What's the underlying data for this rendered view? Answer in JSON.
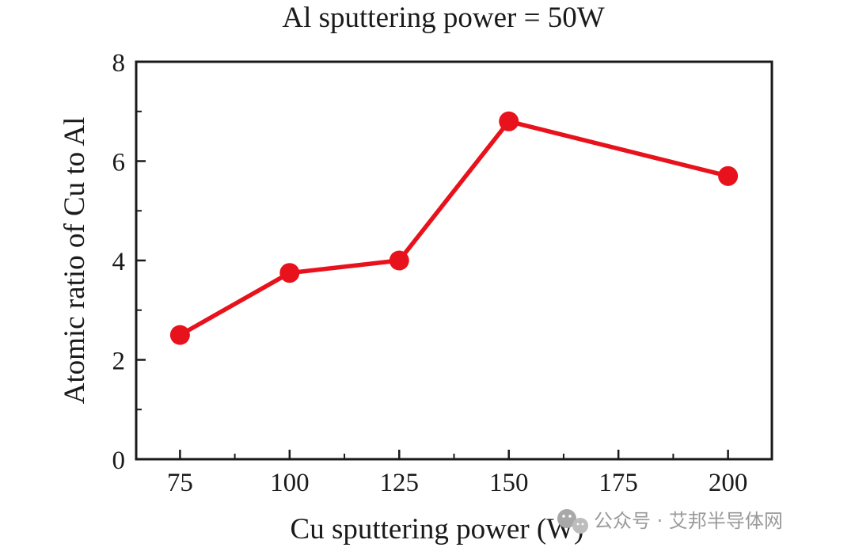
{
  "chart_data": {
    "type": "line",
    "title": "Al sputtering power = 50W",
    "xlabel": "Cu sputtering power (W)",
    "ylabel": "Atomic ratio of Cu to Al",
    "x": [
      75,
      100,
      125,
      150,
      200
    ],
    "series": [
      {
        "values": [
          2.5,
          3.75,
          4.0,
          6.8,
          5.7
        ]
      }
    ],
    "xlim": [
      65,
      210
    ],
    "ylim": [
      0,
      8
    ],
    "xticks": [
      75,
      100,
      125,
      150,
      175,
      200
    ],
    "yticks": [
      0,
      2,
      4,
      6,
      8
    ],
    "grid": false,
    "legend": "none",
    "colors": {
      "series": "#e8121c",
      "axes": "#1a1a1a"
    }
  },
  "watermark": {
    "icon": "wechat-icon",
    "text": "公众号 · 艾邦半导体网"
  }
}
